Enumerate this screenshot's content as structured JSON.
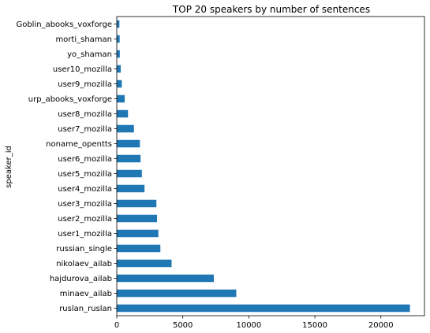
{
  "chart_data": {
    "type": "bar",
    "orientation": "horizontal",
    "title": "TOP 20 speakers by number of sentences",
    "xlabel": "",
    "ylabel": "speaker_id",
    "xlim": [
      0,
      23300
    ],
    "xticks": [
      0,
      5000,
      10000,
      15000,
      20000
    ],
    "grid": false,
    "legend": "none",
    "bar_color": "#1f77b4",
    "categories": [
      "ruslan_ruslan",
      "minaev_ailab",
      "hajdurova_ailab",
      "nikolaev_ailab",
      "russian_single",
      "user1_mozilla",
      "user2_mozilla",
      "user3_mozilla",
      "user4_mozilla",
      "user5_mozilla",
      "user6_mozilla",
      "noname_opentts",
      "user7_mozilla",
      "user8_mozilla",
      "urp_abooks_voxforge",
      "user9_mozilla",
      "user10_mozilla",
      "yo_shaman",
      "morti_shaman",
      "Goblin_abooks_voxforge"
    ],
    "values": [
      22200,
      9050,
      7350,
      4150,
      3300,
      3150,
      3050,
      3000,
      2100,
      1900,
      1800,
      1750,
      1300,
      850,
      600,
      380,
      300,
      230,
      220,
      200
    ]
  }
}
